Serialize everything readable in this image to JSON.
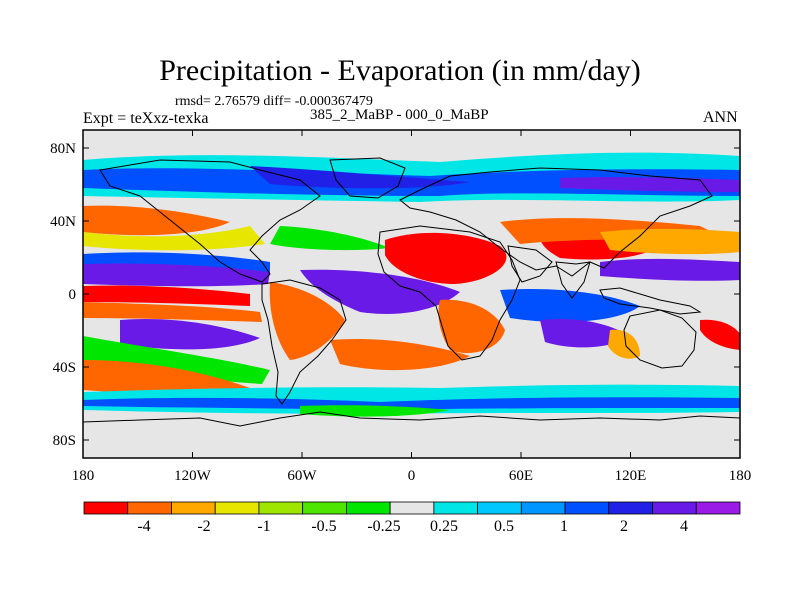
{
  "title": "Precipitation - Evaporation (in mm/day)",
  "stats": "rmsd= 2.76579 diff= -0.000367479",
  "expt": "Expt = teXxz-texka",
  "case_id": "385_2_MaBP - 000_0_MaBP",
  "season": "ANN",
  "map": {
    "y_ticks": [
      "80N",
      "40N",
      "0",
      "40S",
      "80S"
    ],
    "x_ticks": [
      "180",
      "120W",
      "60W",
      "0",
      "60E",
      "120E",
      "180"
    ],
    "lat_values": [
      80,
      40,
      0,
      -40,
      -80
    ],
    "lon_values": [
      -180,
      -120,
      -60,
      0,
      60,
      120,
      180
    ],
    "lon_range": [
      -180,
      180
    ],
    "lat_range": [
      -90,
      90
    ]
  },
  "colorbar": {
    "colors": [
      "#ff0000",
      "#ff6600",
      "#ffa800",
      "#e6e600",
      "#9ee600",
      "#4ee600",
      "#00e600",
      "#e6e6e6",
      "#00e6e6",
      "#00c8ff",
      "#0096ff",
      "#0050ff",
      "#2020e6",
      "#6a1ae6",
      "#9a1ae6"
    ],
    "labels": [
      "-4",
      "-2",
      "-1",
      "-0.5",
      "-0.25",
      "0.25",
      "0.5",
      "1",
      "2",
      "4"
    ]
  }
}
